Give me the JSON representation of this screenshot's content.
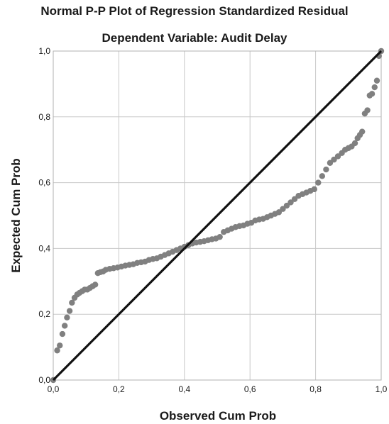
{
  "chart_data": {
    "type": "scatter",
    "title": "Normal P-P Plot of Regression Standardized Residual",
    "subtitle": "Dependent Variable: Audit Delay",
    "xlabel": "Observed Cum Prob",
    "ylabel": "Expected Cum Prob",
    "xlim": [
      0,
      1
    ],
    "ylim": [
      0,
      1
    ],
    "xticks": [
      "0,0",
      "0,2",
      "0,4",
      "0,6",
      "0,8",
      "1,0"
    ],
    "yticks": [
      "0,0",
      "0,2",
      "0,4",
      "0,6",
      "0,8",
      "1,0"
    ],
    "grid": true,
    "reference_line": {
      "from": [
        0,
        0
      ],
      "to": [
        1,
        1
      ],
      "color": "#111111"
    },
    "point_color": "#808080",
    "series": [
      {
        "x": [
          0.0,
          0.012,
          0.02,
          0.028,
          0.035,
          0.042,
          0.05,
          0.057,
          0.065,
          0.073,
          0.08,
          0.088,
          0.096,
          0.104,
          0.112,
          0.12,
          0.128,
          0.136,
          0.144,
          0.152,
          0.16,
          0.172,
          0.184,
          0.196,
          0.208,
          0.22,
          0.232,
          0.244,
          0.256,
          0.268,
          0.28,
          0.292,
          0.304,
          0.316,
          0.328,
          0.34,
          0.352,
          0.364,
          0.376,
          0.388,
          0.4,
          0.412,
          0.424,
          0.436,
          0.448,
          0.46,
          0.472,
          0.484,
          0.496,
          0.508,
          0.52,
          0.532,
          0.544,
          0.556,
          0.568,
          0.58,
          0.592,
          0.604,
          0.616,
          0.628,
          0.64,
          0.652,
          0.664,
          0.676,
          0.688,
          0.7,
          0.712,
          0.724,
          0.736,
          0.748,
          0.76,
          0.772,
          0.784,
          0.796,
          0.808,
          0.82,
          0.832,
          0.844,
          0.856,
          0.868,
          0.88,
          0.89,
          0.9,
          0.91,
          0.92,
          0.928,
          0.935,
          0.942,
          0.95,
          0.958,
          0.965,
          0.972,
          0.98,
          0.987,
          0.993,
          1.0
        ],
        "y": [
          0.0,
          0.09,
          0.105,
          0.14,
          0.165,
          0.19,
          0.21,
          0.235,
          0.25,
          0.26,
          0.265,
          0.27,
          0.275,
          0.275,
          0.28,
          0.285,
          0.29,
          0.325,
          0.328,
          0.33,
          0.335,
          0.338,
          0.34,
          0.342,
          0.345,
          0.348,
          0.35,
          0.352,
          0.356,
          0.358,
          0.36,
          0.365,
          0.368,
          0.37,
          0.375,
          0.38,
          0.385,
          0.39,
          0.395,
          0.4,
          0.405,
          0.41,
          0.415,
          0.418,
          0.42,
          0.422,
          0.425,
          0.428,
          0.43,
          0.435,
          0.45,
          0.455,
          0.46,
          0.465,
          0.468,
          0.47,
          0.475,
          0.478,
          0.485,
          0.488,
          0.49,
          0.495,
          0.5,
          0.505,
          0.51,
          0.52,
          0.53,
          0.54,
          0.55,
          0.56,
          0.565,
          0.57,
          0.575,
          0.58,
          0.6,
          0.62,
          0.64,
          0.66,
          0.67,
          0.68,
          0.69,
          0.7,
          0.705,
          0.71,
          0.72,
          0.735,
          0.745,
          0.755,
          0.81,
          0.82,
          0.865,
          0.87,
          0.89,
          0.91,
          0.985,
          1.0
        ]
      }
    ]
  }
}
